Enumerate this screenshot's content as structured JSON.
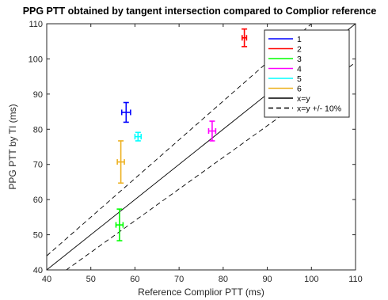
{
  "chart_data": {
    "type": "scatter",
    "title": "PPG PTT obtained by tangent intersection compared to Complior reference",
    "xlabel": "Reference Complior PTT (ms)",
    "ylabel": "PPG PTT by TI (ms)",
    "xlim": [
      40,
      110
    ],
    "ylim": [
      40,
      110
    ],
    "xticks": [
      40,
      50,
      60,
      70,
      80,
      90,
      100,
      110
    ],
    "yticks": [
      40,
      50,
      60,
      70,
      80,
      90,
      100,
      110
    ],
    "grid": false,
    "legend_position": "top-right",
    "series": [
      {
        "name": "1",
        "color": "#0000ff",
        "x": 58.0,
        "y": 84.8,
        "xerr": 1.0,
        "yerr": 2.8
      },
      {
        "name": "2",
        "color": "#ff0000",
        "x": 84.8,
        "y": 106.0,
        "xerr": 0.5,
        "yerr": 2.5
      },
      {
        "name": "3",
        "color": "#00ff00",
        "x": 56.5,
        "y": 52.8,
        "xerr": 0.8,
        "yerr": 4.5
      },
      {
        "name": "4",
        "color": "#ff00ff",
        "x": 77.5,
        "y": 79.5,
        "xerr": 0.8,
        "yerr": 2.8
      },
      {
        "name": "5",
        "color": "#00ffff",
        "x": 60.7,
        "y": 77.9,
        "xerr": 0.7,
        "yerr": 1.2
      },
      {
        "name": "6",
        "color": "#edb120",
        "x": 56.8,
        "y": 70.7,
        "xerr": 0.8,
        "yerr": 6.0
      }
    ],
    "lines": [
      {
        "name": "x=y",
        "style": "solid",
        "color": "#000000",
        "factor": 1.0
      },
      {
        "name": "x=y +/- 10%",
        "style": "dashed",
        "color": "#000000",
        "factors": [
          1.1,
          0.9
        ]
      }
    ]
  }
}
